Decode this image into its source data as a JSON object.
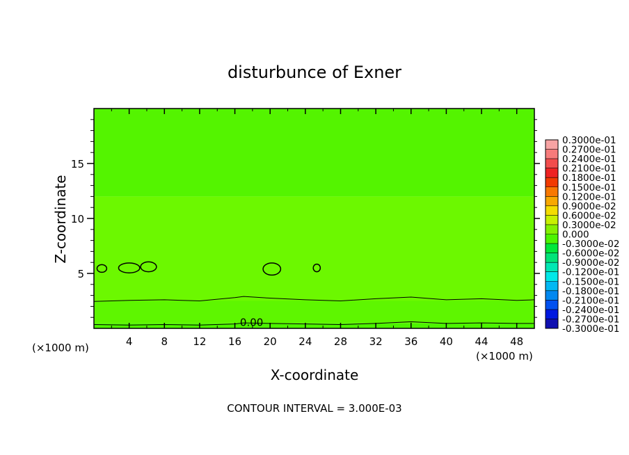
{
  "chart_data": {
    "type": "contour",
    "title": "disturbunce of Exner",
    "xlabel": "X-coordinate",
    "ylabel": "Z-coordinate",
    "x_unit_left": "(×1000 m)",
    "x_unit_right": "(×1000 m)",
    "xlim": [
      0,
      50
    ],
    "ylim": [
      0,
      20
    ],
    "x_ticks": [
      4,
      8,
      12,
      16,
      20,
      24,
      28,
      32,
      36,
      40,
      44,
      48
    ],
    "y_ticks": [
      5,
      10,
      15
    ],
    "footer": "CONTOUR INTERVAL = 3.000E-03",
    "contour_label": "0.00",
    "contour_label_at": {
      "x": 17.9,
      "y": 0.55
    },
    "colorbar_labels": [
      "0.3000e-01",
      "0.2700e-01",
      "0.2400e-01",
      "0.2100e-01",
      "0.1800e-01",
      "0.1500e-01",
      "0.1200e-01",
      "0.9000e-02",
      "0.6000e-02",
      "0.3000e-02",
      "0.000",
      "-0.3000e-02",
      "-0.6000e-02",
      "-0.9000e-02",
      "-0.1200e-01",
      "-0.1500e-01",
      "-0.1800e-01",
      "-0.2100e-01",
      "-0.2400e-01",
      "-0.2700e-01",
      "-0.3000e-01"
    ],
    "colorbar_colors": [
      "#f7a3a3",
      "#f77b7b",
      "#f24d4d",
      "#ee2222",
      "#f23a00",
      "#f87800",
      "#f8a800",
      "#f4dc00",
      "#c8f000",
      "#84f000",
      "#4cf400",
      "#00e83a",
      "#00e478",
      "#00e8b4",
      "#00e8e8",
      "#00b8f4",
      "#0088f0",
      "#0050f0",
      "#0018e0",
      "#1010b0",
      "#6020a0"
    ],
    "field_bands": [
      {
        "z": [
          0.0,
          0.45
        ],
        "color": "#4cf400"
      },
      {
        "z": [
          0.45,
          2.5
        ],
        "color": "#5ef600"
      },
      {
        "z": [
          2.5,
          12.0
        ],
        "color": "#6cf800"
      },
      {
        "z": [
          12.0,
          20.0
        ],
        "color": "#54f400"
      }
    ],
    "contour_lines": [
      {
        "level": "0.000",
        "x": [
          0,
          4,
          8,
          12,
          16,
          17,
          20,
          24,
          28,
          32,
          36,
          40,
          44,
          48,
          50
        ],
        "z": [
          0.35,
          0.3,
          0.35,
          0.3,
          0.4,
          0.5,
          0.45,
          0.4,
          0.35,
          0.45,
          0.6,
          0.45,
          0.5,
          0.45,
          0.45
        ]
      },
      {
        "level": "0.003",
        "x": [
          0,
          4,
          8,
          12,
          16,
          17,
          20,
          24,
          28,
          32,
          36,
          40,
          44,
          48,
          50
        ],
        "z": [
          2.45,
          2.55,
          2.6,
          2.5,
          2.8,
          2.9,
          2.75,
          2.6,
          2.5,
          2.7,
          2.85,
          2.6,
          2.7,
          2.55,
          2.6
        ]
      }
    ],
    "contour_loops": [
      {
        "cx": 0.9,
        "cz": 5.45,
        "rx": 0.55,
        "rz": 0.35
      },
      {
        "cx": 4.0,
        "cz": 5.5,
        "rx": 1.2,
        "rz": 0.45
      },
      {
        "cx": 6.2,
        "cz": 5.6,
        "rx": 0.9,
        "rz": 0.45
      },
      {
        "cx": 20.2,
        "cz": 5.4,
        "rx": 1.0,
        "rz": 0.55
      },
      {
        "cx": 25.3,
        "cz": 5.5,
        "rx": 0.4,
        "rz": 0.35
      }
    ]
  }
}
